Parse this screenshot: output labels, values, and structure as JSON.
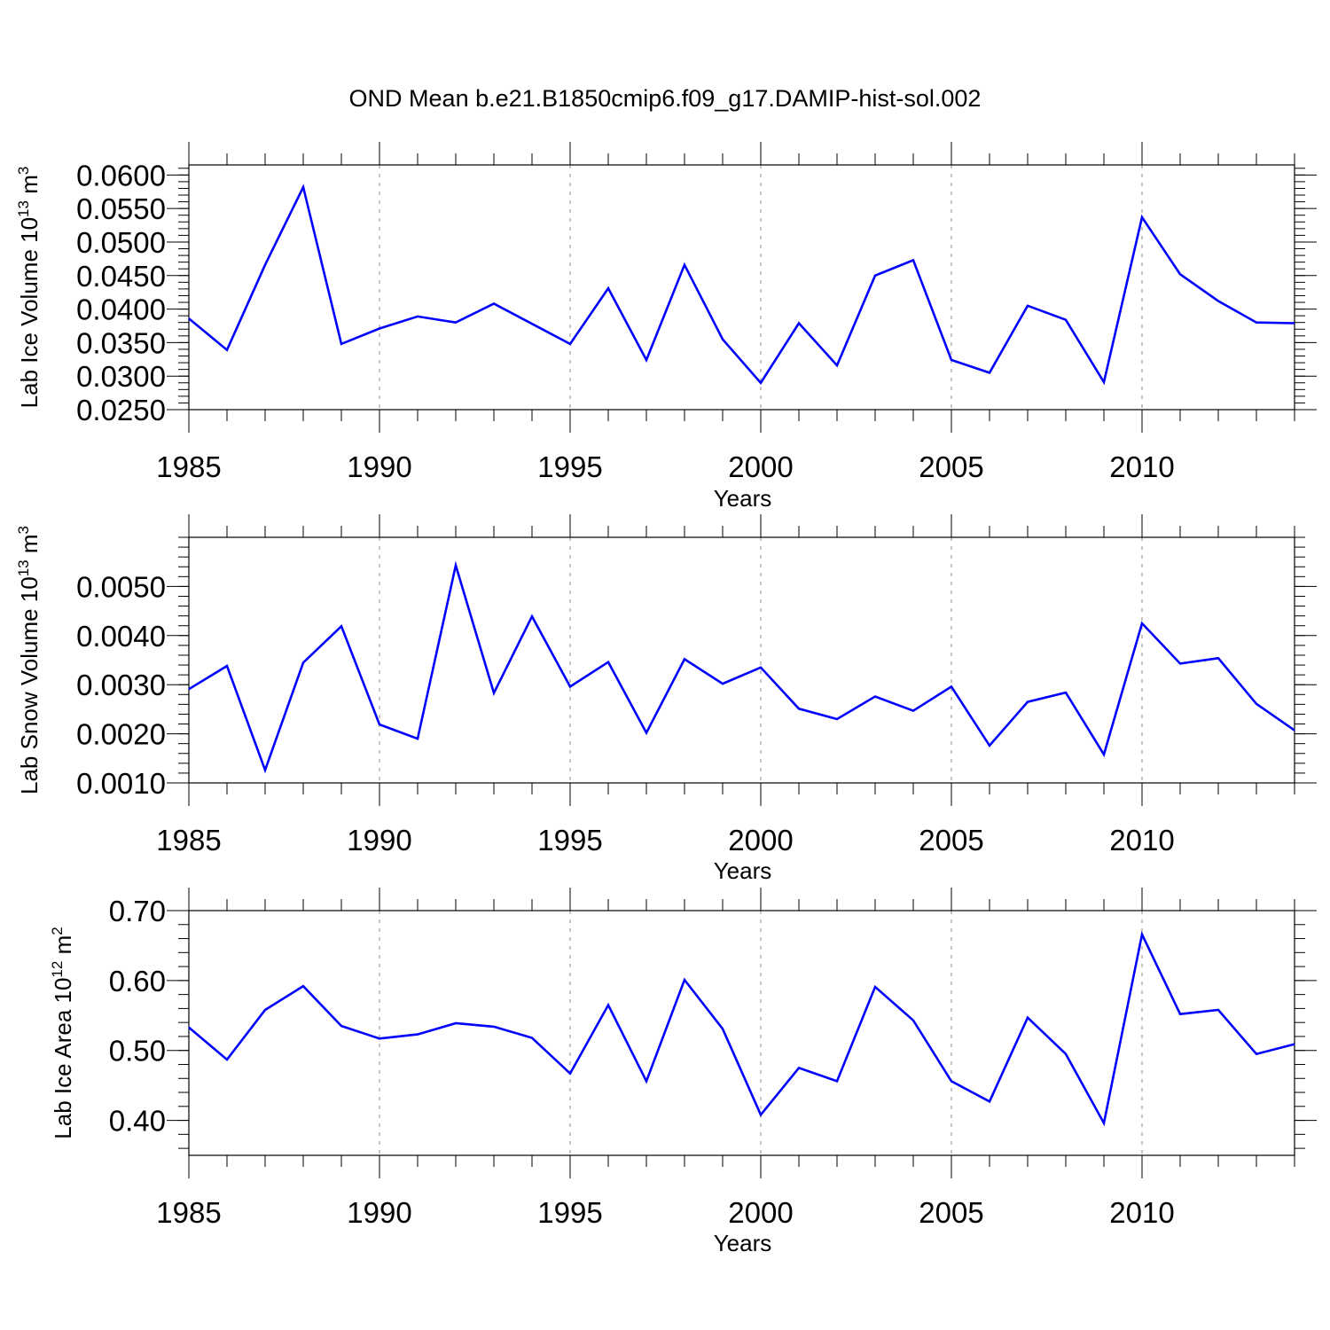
{
  "title": "OND Mean b.e21.B1850cmip6.f09_g17.DAMIP-hist-sol.002",
  "colors": {
    "line": "#0000ff",
    "axis": "#000000",
    "grid": "#8c8c8c"
  },
  "chart_data": [
    {
      "type": "line",
      "xlabel": "Years",
      "ylabel_main": "Lab Ice Volume 10",
      "ylabel_sup": "13",
      "ylabel_unit": " m",
      "ylabel_unit_sup": "3",
      "xlim": [
        1985,
        2014
      ],
      "ylim": [
        0.025,
        0.0615
      ],
      "yticks": [
        0.025,
        0.03,
        0.035,
        0.04,
        0.045,
        0.05,
        0.055,
        0.06
      ],
      "ytick_labels": [
        "0.0250",
        "0.0300",
        "0.0350",
        "0.0400",
        "0.0450",
        "0.0500",
        "0.0550",
        "0.0600"
      ],
      "xticks": [
        1985,
        1990,
        1995,
        2000,
        2005,
        2010
      ],
      "xtick_labels": [
        "1985",
        "1990",
        "1995",
        "2000",
        "2005",
        "2010"
      ],
      "grid": "dashed vertical at major x ticks",
      "x": [
        1985,
        1986,
        1987,
        1988,
        1989,
        1990,
        1991,
        1992,
        1993,
        1994,
        1995,
        1996,
        1997,
        1998,
        1999,
        2000,
        2001,
        2002,
        2003,
        2004,
        2005,
        2006,
        2007,
        2008,
        2009,
        2010,
        2011,
        2012,
        2013,
        2014
      ],
      "y": [
        0.0386,
        0.0339,
        0.0466,
        0.0582,
        0.0348,
        0.0371,
        0.0389,
        0.038,
        0.0408,
        0.0378,
        0.0348,
        0.0431,
        0.0324,
        0.0466,
        0.0355,
        0.029,
        0.0379,
        0.0316,
        0.045,
        0.0473,
        0.0324,
        0.0305,
        0.0405,
        0.0384,
        0.0291,
        0.0537,
        0.0452,
        0.0412,
        0.038,
        0.0379
      ]
    },
    {
      "type": "line",
      "xlabel": "Years",
      "ylabel_main": "Lab Snow Volume 10",
      "ylabel_sup": "13",
      "ylabel_unit": " m",
      "ylabel_unit_sup": "3",
      "xlim": [
        1985,
        2014
      ],
      "ylim": [
        0.001,
        0.006
      ],
      "yticks": [
        0.001,
        0.002,
        0.003,
        0.004,
        0.005
      ],
      "ytick_labels": [
        "0.0010",
        "0.0020",
        "0.0030",
        "0.0040",
        "0.0050"
      ],
      "xticks": [
        1985,
        1990,
        1995,
        2000,
        2005,
        2010
      ],
      "xtick_labels": [
        "1985",
        "1990",
        "1995",
        "2000",
        "2005",
        "2010"
      ],
      "grid": "dashed vertical at major x ticks",
      "x": [
        1985,
        1986,
        1987,
        1988,
        1989,
        1990,
        1991,
        1992,
        1993,
        1994,
        1995,
        1996,
        1997,
        1998,
        1999,
        2000,
        2001,
        2002,
        2003,
        2004,
        2005,
        2006,
        2007,
        2008,
        2009,
        2010,
        2011,
        2012,
        2013,
        2014
      ],
      "y": [
        0.00291,
        0.00338,
        0.00126,
        0.00345,
        0.00419,
        0.00219,
        0.0019,
        0.00543,
        0.00283,
        0.00439,
        0.00296,
        0.00346,
        0.00202,
        0.00352,
        0.00302,
        0.00335,
        0.00251,
        0.0023,
        0.00276,
        0.00247,
        0.00296,
        0.00176,
        0.00265,
        0.00284,
        0.00158,
        0.00425,
        0.00343,
        0.00354,
        0.00261,
        0.00207
      ]
    },
    {
      "type": "line",
      "xlabel": "Years",
      "ylabel_main": "Lab Ice Area 10",
      "ylabel_sup": "12",
      "ylabel_unit": " m",
      "ylabel_unit_sup": "2",
      "xlim": [
        1985,
        2014
      ],
      "ylim": [
        0.35,
        0.7
      ],
      "yticks": [
        0.4,
        0.5,
        0.6,
        0.7
      ],
      "ytick_labels": [
        "0.40",
        "0.50",
        "0.60",
        "0.70"
      ],
      "xticks": [
        1985,
        1990,
        1995,
        2000,
        2005,
        2010
      ],
      "xtick_labels": [
        "1985",
        "1990",
        "1995",
        "2000",
        "2005",
        "2010"
      ],
      "grid": "dashed vertical at major x ticks",
      "x": [
        1985,
        1986,
        1987,
        1988,
        1989,
        1990,
        1991,
        1992,
        1993,
        1994,
        1995,
        1996,
        1997,
        1998,
        1999,
        2000,
        2001,
        2002,
        2003,
        2004,
        2005,
        2006,
        2007,
        2008,
        2009,
        2010,
        2011,
        2012,
        2013,
        2014
      ],
      "y": [
        0.533,
        0.487,
        0.558,
        0.592,
        0.535,
        0.517,
        0.523,
        0.539,
        0.534,
        0.518,
        0.467,
        0.565,
        0.456,
        0.601,
        0.531,
        0.408,
        0.475,
        0.456,
        0.591,
        0.543,
        0.456,
        0.427,
        0.547,
        0.495,
        0.396,
        0.666,
        0.552,
        0.558,
        0.495,
        0.509
      ]
    }
  ]
}
